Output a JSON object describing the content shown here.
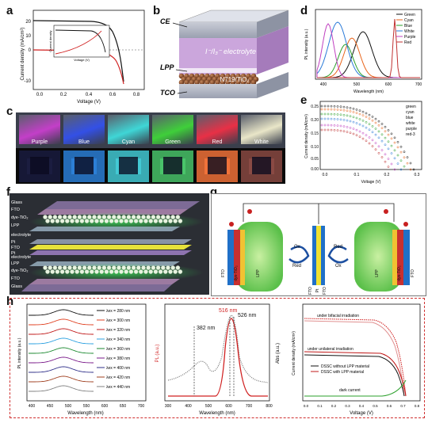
{
  "panels": {
    "a": "a",
    "b": "b",
    "c": "c",
    "d": "d",
    "e": "e",
    "f": "f",
    "g": "g",
    "h": "h"
  },
  "panel_a": {
    "ylabel": "Current density (mA/cm²)",
    "xlabel": "Voltage (V)",
    "yticks": [
      "20",
      "10",
      "0",
      "-10"
    ],
    "xticks": [
      "0.0",
      "0.2",
      "0.4",
      "0.6",
      "0.8"
    ],
    "inset_ylabel": "Current density",
    "inset_xlabel": "Voltage (V)"
  },
  "panel_b": {
    "ce": "CE",
    "electrolyte": "I⁻/I₃⁻ electrolyte",
    "lpp": "LPP",
    "dye": "N719/TiO₂",
    "tco": "TCO"
  },
  "panel_c": {
    "labels": [
      "Purple",
      "Blue",
      "Cyan",
      "Green",
      "Red",
      "White"
    ],
    "tile_colors": [
      "#c33fc8",
      "#3350e6",
      "#3fd6d6",
      "#3fcf3a",
      "#e83046",
      "#e9e6c8"
    ],
    "photo_colors": [
      "#1b1d40",
      "#2c7fd6",
      "#43c9d4",
      "#49c46a",
      "#f0723a",
      "#8a4a44"
    ]
  },
  "panel_d": {
    "ylabel": "PL intensity (a.u.)",
    "xlabel": "Wavelength (nm)",
    "xticks": [
      "400",
      "500",
      "600",
      "700"
    ],
    "legend": [
      "Green",
      "Cyan",
      "Blue",
      "White",
      "Purple",
      "Red"
    ],
    "legend_colors": [
      "#111111",
      "#e8641a",
      "#2ba02b",
      "#2a7ad8",
      "#c040c0",
      "#c03030"
    ]
  },
  "panel_e": {
    "ylabel": "Current density (mA/cm²)",
    "xlabel": "Voltage (V)",
    "yticks": [
      "0.25",
      "0.20",
      "0.15",
      "0.10",
      "0.05",
      "0.00"
    ],
    "xticks": [
      "0.0",
      "0.1",
      "0.2",
      "0.3"
    ],
    "legend": [
      "green",
      "cyan",
      "blue",
      "white",
      "purple",
      "red-3"
    ]
  },
  "panel_f": {
    "labels": [
      "Glass",
      "FTO",
      "dye-TiO₂",
      "LPP",
      "electrolyte",
      "Pt",
      "FTO",
      "Pt",
      "electrolyte",
      "LPP",
      "dye-TiO₂",
      "FTO",
      "Glass"
    ]
  },
  "panel_g": {
    "left_labels": [
      "FTO",
      "dye-TiO₂",
      "LPP"
    ],
    "center_labels": [
      "FTO",
      "Pt",
      "FTO"
    ],
    "right_labels": [
      "LPP",
      "dye-TiO₂",
      "FTO"
    ],
    "ox": "Ox",
    "red": "Red"
  },
  "panel_h1": {
    "ylabel": "PL intensity (a.u.)",
    "xlabel": "Wavelength (nm)",
    "xticks": [
      "400",
      "450",
      "500",
      "550",
      "600",
      "650",
      "700"
    ],
    "legend": [
      "λex = 280 nm",
      "λex = 300 nm",
      "λex = 320 nm",
      "λex = 340 nm",
      "λex = 360 nm",
      "λex = 380 nm",
      "λex = 400 nm",
      "λex = 420 nm",
      "λex = 440 nm"
    ],
    "legend_colors": [
      "#111111",
      "#e04020",
      "#c01818",
      "#2ba0e0",
      "#1c8a30",
      "#7a1a8a",
      "#30308a",
      "#a04020",
      "#808080"
    ]
  },
  "panel_h2": {
    "ylabel": "PL (a.u.)",
    "ylabel2": "Abs (a.u.)",
    "xlabel": "Wavelength (nm)",
    "peak1": "516 nm",
    "peak2": "382 nm",
    "peak3": "526 nm",
    "xticks": [
      "300",
      "400",
      "500",
      "600",
      "700",
      "800"
    ]
  },
  "panel_h3": {
    "ylabel": "Current density (mA/cm²)",
    "xlabel": "Voltage (V)",
    "xticks": [
      "0.0",
      "0.1",
      "0.2",
      "0.3",
      "0.4",
      "0.5",
      "0.6",
      "0.7",
      "0.8"
    ],
    "ann_bifacial": "under bifacial irradiation",
    "ann_uni": "under unilateral irradiation",
    "ann_dark": "dark current",
    "legend": [
      "DSSC without LPP material",
      "DSSC with LPP material"
    ]
  }
}
